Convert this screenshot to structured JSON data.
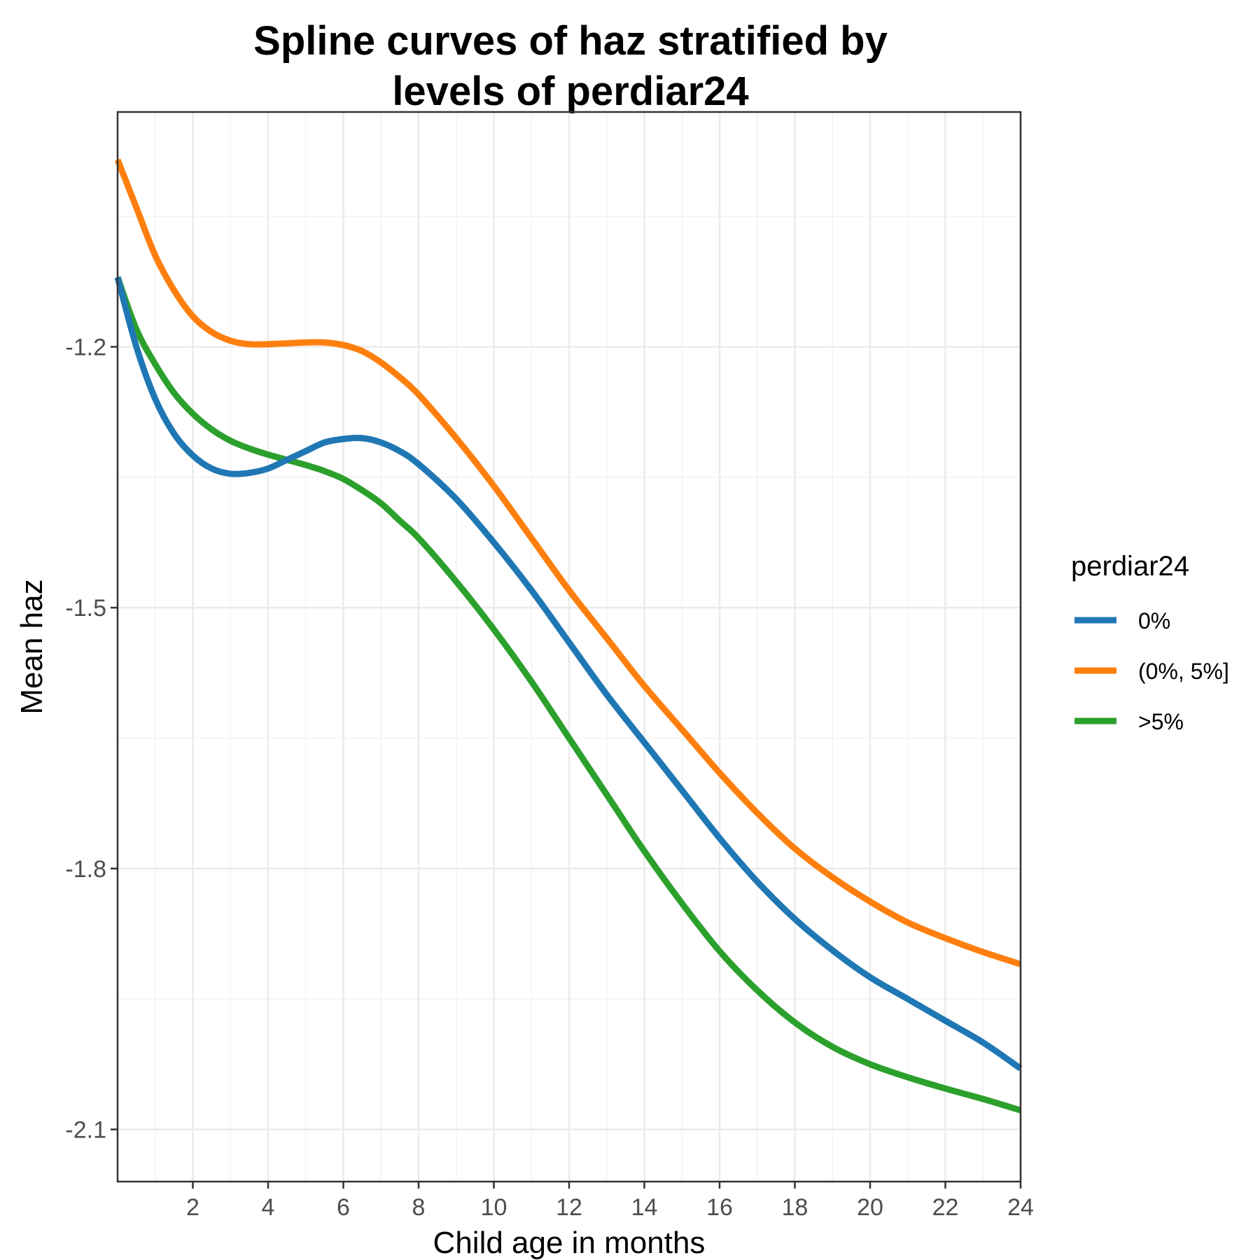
{
  "chart_data": {
    "type": "line",
    "title": "Spline curves of haz stratified by levels of perdiar24",
    "title_lines": [
      "Spline curves of haz stratified by",
      "levels of perdiar24"
    ],
    "xlabel": "Child age in months",
    "ylabel": "Mean haz",
    "xlim": [
      0,
      24
    ],
    "ylim": [
      -2.16,
      -0.93
    ],
    "x_ticks": [
      2,
      4,
      6,
      8,
      10,
      12,
      14,
      16,
      18,
      20,
      22,
      24
    ],
    "x_tick_labels": [
      "2",
      "4",
      "6",
      "8",
      "10",
      "12",
      "14",
      "16",
      "18",
      "20",
      "22",
      "24"
    ],
    "y_ticks": [
      -2.1,
      -1.8,
      -1.5,
      -1.2
    ],
    "y_tick_labels": [
      "-2.1",
      "-1.8",
      "-1.5",
      "-1.2"
    ],
    "grid": true,
    "legend": {
      "title": "perdiar24",
      "position": "right"
    },
    "series": [
      {
        "name": "0%",
        "color": "#1f77b4",
        "x": [
          0,
          0.5,
          1,
          1.5,
          2,
          2.5,
          3,
          3.5,
          4,
          4.5,
          5,
          5.5,
          6,
          6.5,
          7,
          7.5,
          8,
          9,
          10,
          11,
          12,
          13,
          14,
          15,
          16,
          17,
          18,
          19,
          20,
          21,
          22,
          23,
          24
        ],
        "y": [
          -1.12,
          -1.2,
          -1.26,
          -1.3,
          -1.325,
          -1.34,
          -1.346,
          -1.345,
          -1.34,
          -1.33,
          -1.32,
          -1.31,
          -1.306,
          -1.305,
          -1.31,
          -1.32,
          -1.335,
          -1.375,
          -1.425,
          -1.48,
          -1.54,
          -1.6,
          -1.655,
          -1.71,
          -1.765,
          -1.815,
          -1.858,
          -1.894,
          -1.925,
          -1.95,
          -1.975,
          -2.0,
          -2.03
        ]
      },
      {
        "name": "(0%, 5%]",
        "color": "#ff7f0e",
        "x": [
          0,
          0.5,
          1,
          1.5,
          2,
          2.5,
          3,
          3.5,
          4,
          4.5,
          5,
          5.5,
          6,
          6.5,
          7,
          7.5,
          8,
          9,
          10,
          11,
          12,
          13,
          14,
          15,
          16,
          17,
          18,
          19,
          20,
          21,
          22,
          23,
          24
        ],
        "y": [
          -0.985,
          -1.04,
          -1.095,
          -1.135,
          -1.165,
          -1.183,
          -1.193,
          -1.197,
          -1.197,
          -1.196,
          -1.195,
          -1.195,
          -1.198,
          -1.205,
          -1.218,
          -1.235,
          -1.255,
          -1.305,
          -1.36,
          -1.42,
          -1.48,
          -1.535,
          -1.59,
          -1.64,
          -1.69,
          -1.736,
          -1.777,
          -1.81,
          -1.838,
          -1.862,
          -1.88,
          -1.896,
          -1.91
        ]
      },
      {
        "name": ">5%",
        "color": "#2ca02c",
        "x": [
          0,
          0.5,
          1,
          1.5,
          2,
          2.5,
          3,
          3.5,
          4,
          4.5,
          5,
          5.5,
          6,
          6.5,
          7,
          7.5,
          8,
          9,
          10,
          11,
          12,
          13,
          14,
          15,
          16,
          17,
          18,
          19,
          20,
          21,
          22,
          23,
          24
        ],
        "y": [
          -1.12,
          -1.18,
          -1.22,
          -1.253,
          -1.277,
          -1.295,
          -1.308,
          -1.317,
          -1.324,
          -1.33,
          -1.336,
          -1.343,
          -1.352,
          -1.365,
          -1.38,
          -1.4,
          -1.42,
          -1.47,
          -1.525,
          -1.585,
          -1.65,
          -1.715,
          -1.78,
          -1.84,
          -1.895,
          -1.94,
          -1.977,
          -2.005,
          -2.025,
          -2.04,
          -2.053,
          -2.065,
          -2.078
        ]
      }
    ]
  }
}
